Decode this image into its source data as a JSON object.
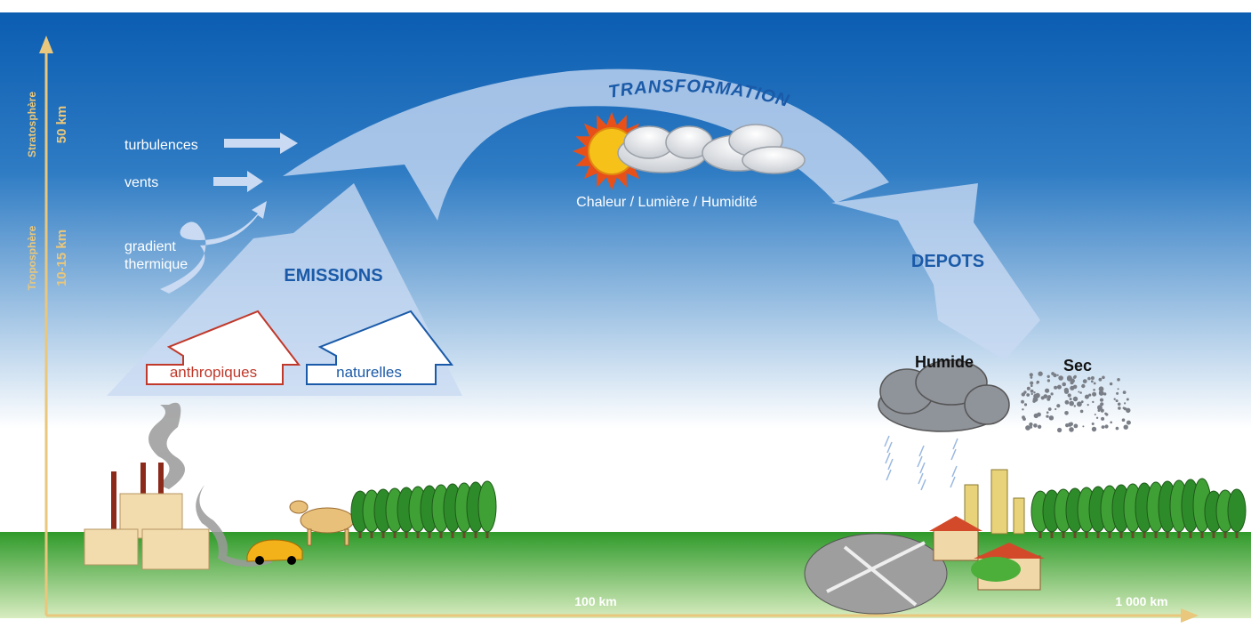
{
  "axes": {
    "vertical": [
      {
        "layer": "Stratosphère",
        "altitude": "50 km"
      },
      {
        "layer": "Troposphère",
        "altitude": "10-15 km"
      }
    ],
    "horizontal": [
      "100 km",
      "1 000 km"
    ]
  },
  "transport": {
    "factors": [
      "turbulences",
      "vents"
    ],
    "gradient": [
      "gradient",
      "thermique"
    ]
  },
  "emissions": {
    "title": "EMISSIONS",
    "sources": [
      "anthropiques",
      "naturelles"
    ]
  },
  "transformation": {
    "title": "TRANSFORMATION",
    "conditions": "Chaleur / Lumière / Humidité"
  },
  "depots": {
    "title": "DEPOTS",
    "types": [
      "Humide",
      "Sec"
    ]
  }
}
